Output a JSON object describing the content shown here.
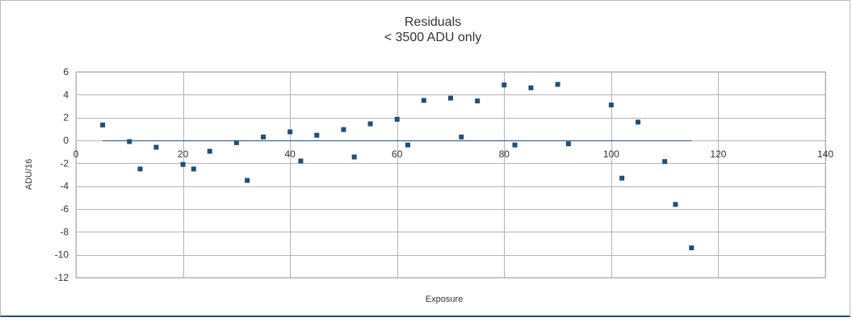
{
  "chart_data": {
    "type": "scatter",
    "title": "Residuals",
    "subtitle": "< 3500 ADU only",
    "xlabel": "Exposure",
    "ylabel": "ADU/16",
    "xlim": [
      0,
      140
    ],
    "ylim": [
      -12,
      6
    ],
    "xticks": [
      "0",
      "20",
      "40",
      "60",
      "80",
      "100",
      "120",
      "140"
    ],
    "yticks": [
      "6",
      "4",
      "2",
      "0",
      "-2",
      "-4",
      "-6",
      "-8",
      "-10",
      "-12"
    ],
    "grid": true,
    "legend": "none",
    "colors": {
      "marker": "#1f4e79",
      "zero_line": "#1f4e79",
      "grid": "#b3b3b3"
    },
    "zero_line": {
      "x": [
        5,
        115
      ],
      "y": 0
    },
    "points": [
      {
        "x": 5,
        "y": 1.35
      },
      {
        "x": 10,
        "y": -0.1
      },
      {
        "x": 12,
        "y": -2.5
      },
      {
        "x": 15,
        "y": -0.6
      },
      {
        "x": 20,
        "y": -2.1
      },
      {
        "x": 22,
        "y": -2.5
      },
      {
        "x": 25,
        "y": -0.95
      },
      {
        "x": 30,
        "y": -0.2
      },
      {
        "x": 32,
        "y": -3.5
      },
      {
        "x": 35,
        "y": 0.3
      },
      {
        "x": 40,
        "y": 0.75
      },
      {
        "x": 42,
        "y": -1.8
      },
      {
        "x": 45,
        "y": 0.45
      },
      {
        "x": 50,
        "y": 0.95
      },
      {
        "x": 52,
        "y": -1.45
      },
      {
        "x": 55,
        "y": 1.45
      },
      {
        "x": 60,
        "y": 1.85
      },
      {
        "x": 62,
        "y": -0.4
      },
      {
        "x": 65,
        "y": 3.5
      },
      {
        "x": 70,
        "y": 3.7
      },
      {
        "x": 72,
        "y": 0.3
      },
      {
        "x": 75,
        "y": 3.45
      },
      {
        "x": 80,
        "y": 4.85
      },
      {
        "x": 82,
        "y": -0.4
      },
      {
        "x": 85,
        "y": 4.6
      },
      {
        "x": 90,
        "y": 4.9
      },
      {
        "x": 92,
        "y": -0.3
      },
      {
        "x": 100,
        "y": 3.1
      },
      {
        "x": 102,
        "y": -3.3
      },
      {
        "x": 105,
        "y": 1.6
      },
      {
        "x": 110,
        "y": -1.85
      },
      {
        "x": 112,
        "y": -5.6
      },
      {
        "x": 115,
        "y": -9.4
      }
    ]
  }
}
